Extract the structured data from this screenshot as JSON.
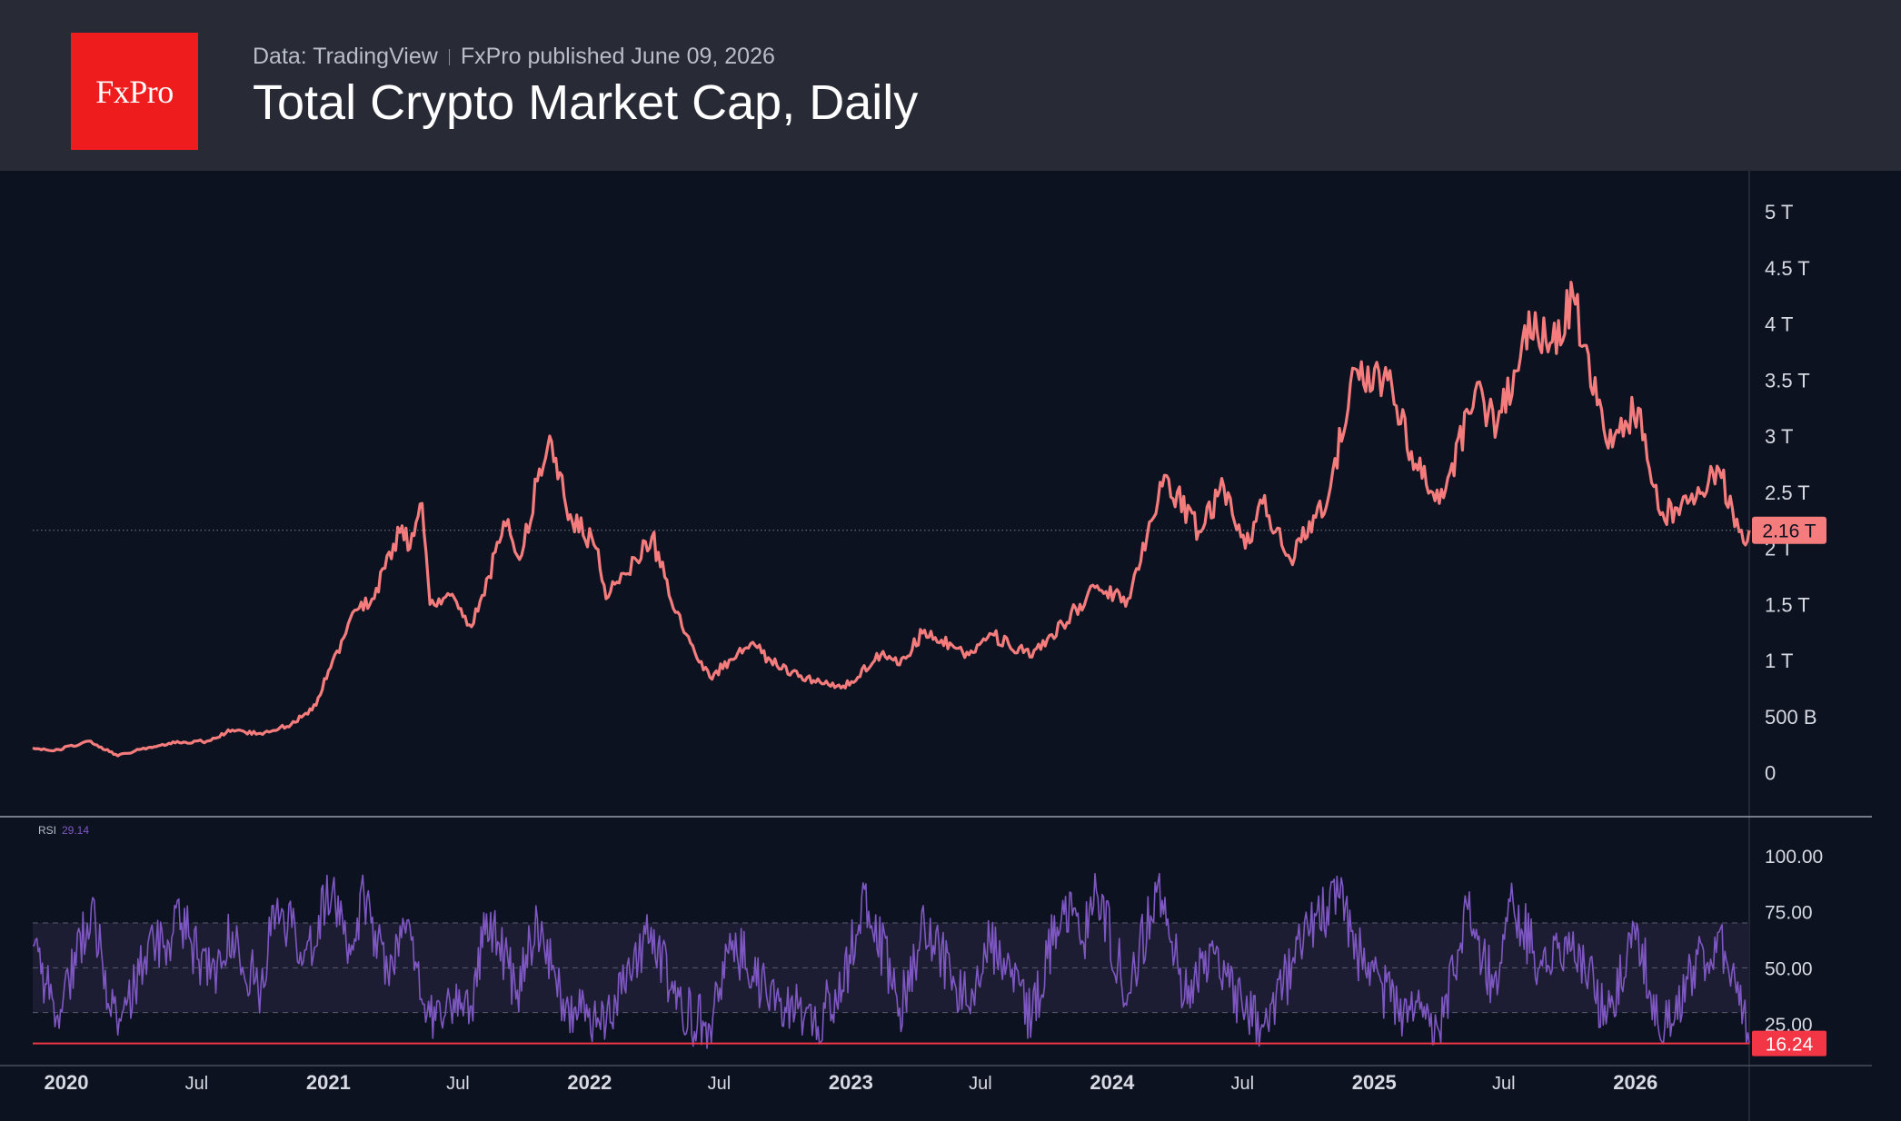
{
  "header": {
    "logo_text": "FxPro",
    "source_left": "Data: TradingView",
    "source_right": "FxPro published June 09, 2026",
    "title": "Total Crypto Market Cap, Daily"
  },
  "colors": {
    "background": "#0d1220",
    "header_bg": "#282b36",
    "logo_red": "#ee1c1c",
    "price_line": "#f47c7c",
    "rsi_line": "#7e57c2",
    "rsi_band": "#1c1d33",
    "rsi_last_badge": "#f23645"
  },
  "chart_data": [
    {
      "type": "line",
      "name": "main-price",
      "x_range": [
        "2019-11-15",
        "2026-06-09"
      ],
      "y_range": [
        -320000000000,
        5380000000000
      ],
      "y_ticks": [
        {
          "value": 5000000000000,
          "label": "5 T"
        },
        {
          "value": 4500000000000,
          "label": "4.5 T"
        },
        {
          "value": 4000000000000,
          "label": "4 T"
        },
        {
          "value": 3500000000000,
          "label": "3.5 T"
        },
        {
          "value": 3000000000000,
          "label": "3 T"
        },
        {
          "value": 2500000000000,
          "label": "2.5 T"
        },
        {
          "value": 2000000000000,
          "label": "2 T"
        },
        {
          "value": 1500000000000,
          "label": "1.5 T"
        },
        {
          "value": 1000000000000,
          "label": "1 T"
        },
        {
          "value": 500000000000,
          "label": "500 B"
        },
        {
          "value": 0,
          "label": "0"
        }
      ],
      "last_value": 2160000000000,
      "last_label": "2.16 T",
      "series": [
        {
          "points": [
            [
              "2019-11-15",
              220000000000.0
            ],
            [
              "2019-12-15",
              195000000000.0
            ],
            [
              "2020-02-01",
              280000000000.0
            ],
            [
              "2020-03-13",
              150000000000.0
            ],
            [
              "2020-04-15",
              210000000000.0
            ],
            [
              "2020-06-01",
              265000000000.0
            ],
            [
              "2020-07-15",
              280000000000.0
            ],
            [
              "2020-08-20",
              380000000000.0
            ],
            [
              "2020-10-01",
              340000000000.0
            ],
            [
              "2020-11-10",
              430000000000.0
            ],
            [
              "2020-12-15",
              600000000000.0
            ],
            [
              "2021-01-07",
              1000000000000.0
            ],
            [
              "2021-02-10",
              1450000000000.0
            ],
            [
              "2021-02-28",
              1500000000000.0
            ],
            [
              "2021-04-14",
              2200000000000.0
            ],
            [
              "2021-04-25",
              2000000000000.0
            ],
            [
              "2021-05-12",
              2400000000000.0
            ],
            [
              "2021-05-23",
              1500000000000.0
            ],
            [
              "2021-06-20",
              1580000000000.0
            ],
            [
              "2021-07-20",
              1300000000000.0
            ],
            [
              "2021-09-06",
              2200000000000.0
            ],
            [
              "2021-09-25",
              1900000000000.0
            ],
            [
              "2021-10-20",
              2600000000000.0
            ],
            [
              "2021-11-09",
              2950000000000.0
            ],
            [
              "2021-12-05",
              2300000000000.0
            ],
            [
              "2022-01-10",
              2000000000000.0
            ],
            [
              "2022-01-24",
              1550000000000.0
            ],
            [
              "2022-03-29",
              2100000000000.0
            ],
            [
              "2022-05-10",
              1300000000000.0
            ],
            [
              "2022-06-18",
              850000000000.0
            ],
            [
              "2022-08-14",
              1150000000000.0
            ],
            [
              "2022-09-20",
              950000000000.0
            ],
            [
              "2022-11-10",
              820000000000.0
            ],
            [
              "2022-12-30",
              780000000000.0
            ],
            [
              "2023-02-15",
              1080000000000.0
            ],
            [
              "2023-03-10",
              960000000000.0
            ],
            [
              "2023-04-14",
              1270000000000.0
            ],
            [
              "2023-06-15",
              1050000000000.0
            ],
            [
              "2023-07-14",
              1240000000000.0
            ],
            [
              "2023-09-11",
              1030000000000.0
            ],
            [
              "2023-10-24",
              1320000000000.0
            ],
            [
              "2023-12-08",
              1650000000000.0
            ],
            [
              "2024-01-23",
              1550000000000.0
            ],
            [
              "2024-03-14",
              2650000000000.0
            ],
            [
              "2024-05-01",
              2150000000000.0
            ],
            [
              "2024-06-05",
              2550000000000.0
            ],
            [
              "2024-07-05",
              2000000000000.0
            ],
            [
              "2024-07-29",
              2400000000000.0
            ],
            [
              "2024-09-06",
              1900000000000.0
            ],
            [
              "2024-10-29",
              2450000000000.0
            ],
            [
              "2024-12-05",
              3600000000000.0
            ],
            [
              "2025-01-20",
              3500000000000.0
            ],
            [
              "2025-02-28",
              2750000000000.0
            ],
            [
              "2025-04-08",
              2450000000000.0
            ],
            [
              "2025-05-22",
              3400000000000.0
            ],
            [
              "2025-06-22",
              3100000000000.0
            ],
            [
              "2025-08-14",
              4100000000000.0
            ],
            [
              "2025-09-01",
              3750000000000.0
            ],
            [
              "2025-10-06",
              4250000000000.0
            ],
            [
              "2025-11-21",
              2950000000000.0
            ],
            [
              "2026-01-05",
              3250000000000.0
            ],
            [
              "2026-02-05",
              2300000000000.0
            ],
            [
              "2026-03-15",
              2400000000000.0
            ],
            [
              "2026-04-28",
              2700000000000.0
            ],
            [
              "2026-06-01",
              2050000000000.0
            ],
            [
              "2026-06-09",
              2160000000000.0
            ]
          ]
        }
      ]
    },
    {
      "type": "line",
      "name": "rsi",
      "title": "RSI",
      "last_value": 16.24,
      "header_value": "29.14",
      "y_range": [
        10,
        110
      ],
      "y_ticks": [
        {
          "value": 100,
          "label": "100.00"
        },
        {
          "value": 75,
          "label": "75.00"
        },
        {
          "value": 50,
          "label": "50.00"
        },
        {
          "value": 25,
          "label": "25.00"
        }
      ],
      "band": [
        30,
        70
      ],
      "series": [
        {
          "points": [
            [
              "2019-11-15",
              60
            ],
            [
              "2019-12-18",
              28
            ],
            [
              "2020-02-05",
              78
            ],
            [
              "2020-03-13",
              20
            ],
            [
              "2020-04-20",
              55
            ],
            [
              "2020-06-10",
              70
            ],
            [
              "2020-07-20",
              45
            ],
            [
              "2020-08-20",
              66
            ],
            [
              "2020-09-25",
              40
            ],
            [
              "2020-10-20",
              75
            ],
            [
              "2020-12-01",
              58
            ],
            [
              "2021-01-07",
              86
            ],
            [
              "2021-01-28",
              52
            ],
            [
              "2021-02-20",
              82
            ],
            [
              "2021-03-25",
              48
            ],
            [
              "2021-04-15",
              72
            ],
            [
              "2021-05-23",
              28
            ],
            [
              "2021-06-25",
              36
            ],
            [
              "2021-07-20",
              33
            ],
            [
              "2021-08-10",
              74
            ],
            [
              "2021-09-22",
              40
            ],
            [
              "2021-10-20",
              72
            ],
            [
              "2021-11-25",
              36
            ],
            [
              "2021-12-20",
              30
            ],
            [
              "2022-01-24",
              25
            ],
            [
              "2022-03-28",
              68
            ],
            [
              "2022-05-10",
              30
            ],
            [
              "2022-06-18",
              24
            ],
            [
              "2022-07-20",
              62
            ],
            [
              "2022-09-05",
              38
            ],
            [
              "2022-11-10",
              26
            ],
            [
              "2022-12-20",
              40
            ],
            [
              "2023-01-20",
              85
            ],
            [
              "2023-03-10",
              32
            ],
            [
              "2023-04-14",
              68
            ],
            [
              "2023-06-15",
              32
            ],
            [
              "2023-07-14",
              62
            ],
            [
              "2023-09-11",
              28
            ],
            [
              "2023-10-24",
              80
            ],
            [
              "2023-11-20",
              62
            ],
            [
              "2023-12-10",
              84
            ],
            [
              "2024-01-23",
              38
            ],
            [
              "2024-03-05",
              88
            ],
            [
              "2024-04-15",
              34
            ],
            [
              "2024-05-20",
              62
            ],
            [
              "2024-07-05",
              30
            ],
            [
              "2024-08-05",
              25
            ],
            [
              "2024-09-20",
              60
            ],
            [
              "2024-11-12",
              82
            ],
            [
              "2024-12-20",
              48
            ],
            [
              "2025-02-03",
              32
            ],
            [
              "2025-03-10",
              28
            ],
            [
              "2025-04-08",
              28
            ],
            [
              "2025-05-12",
              76
            ],
            [
              "2025-06-22",
              38
            ],
            [
              "2025-07-14",
              80
            ],
            [
              "2025-08-20",
              50
            ],
            [
              "2025-10-06",
              66
            ],
            [
              "2025-11-21",
              25
            ],
            [
              "2026-01-05",
              66
            ],
            [
              "2026-02-05",
              18
            ],
            [
              "2026-03-15",
              45
            ],
            [
              "2026-04-28",
              66
            ],
            [
              "2026-05-20",
              45
            ],
            [
              "2026-06-09",
              16.24
            ]
          ]
        }
      ]
    }
  ],
  "x_axis": {
    "ticks": [
      {
        "date": "2020-01-01",
        "label": "2020",
        "bold": true
      },
      {
        "date": "2020-07-01",
        "label": "Jul",
        "bold": false
      },
      {
        "date": "2021-01-01",
        "label": "2021",
        "bold": true
      },
      {
        "date": "2021-07-01",
        "label": "Jul",
        "bold": false
      },
      {
        "date": "2022-01-01",
        "label": "2022",
        "bold": true
      },
      {
        "date": "2022-07-01",
        "label": "Jul",
        "bold": false
      },
      {
        "date": "2023-01-01",
        "label": "2023",
        "bold": true
      },
      {
        "date": "2023-07-01",
        "label": "Jul",
        "bold": false
      },
      {
        "date": "2024-01-01",
        "label": "2024",
        "bold": true
      },
      {
        "date": "2024-07-01",
        "label": "Jul",
        "bold": false
      },
      {
        "date": "2025-01-01",
        "label": "2025",
        "bold": true
      },
      {
        "date": "2025-07-01",
        "label": "Jul",
        "bold": false
      },
      {
        "date": "2026-01-01",
        "label": "2026",
        "bold": true
      }
    ]
  }
}
